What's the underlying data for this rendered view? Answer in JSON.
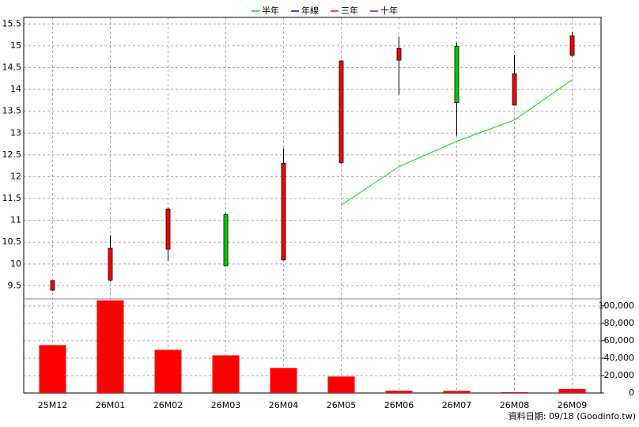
{
  "chart_data": [
    {
      "type": "candlestick",
      "categories": [
        "25M12",
        "26M01",
        "26M02",
        "26M03",
        "26M04",
        "26M05",
        "26M06",
        "26M07",
        "26M08",
        "26M09"
      ],
      "open": [
        9.4,
        9.63,
        10.34,
        11.13,
        10.09,
        12.32,
        14.67,
        14.99,
        13.64,
        14.78
      ],
      "high": [
        9.62,
        10.66,
        11.29,
        11.16,
        12.65,
        14.67,
        15.21,
        15.07,
        14.78,
        15.32
      ],
      "low": [
        9.38,
        9.6,
        10.07,
        9.95,
        10.09,
        12.3,
        13.88,
        12.94,
        13.64,
        14.75
      ],
      "close": [
        9.62,
        10.36,
        11.26,
        9.96,
        12.31,
        14.65,
        14.94,
        13.7,
        14.36,
        15.23
      ],
      "up_color": "#ff0000",
      "down_color": "#00cc00",
      "series": [
        {
          "name": "半年",
          "color": "#00dd00",
          "values": [
            null,
            null,
            null,
            null,
            null,
            11.35,
            12.23,
            12.81,
            13.3,
            14.22
          ]
        },
        {
          "name": "年線",
          "color": "#0000ff",
          "values": [
            null,
            null,
            null,
            null,
            null,
            null,
            null,
            null,
            null,
            null
          ]
        },
        {
          "name": "三年",
          "color": "#ff0000",
          "values": [
            null,
            null,
            null,
            null,
            null,
            null,
            null,
            null,
            null,
            null
          ]
        },
        {
          "name": "十年",
          "color": "#8000ff",
          "values": [
            null,
            null,
            null,
            null,
            null,
            null,
            null,
            null,
            null,
            null
          ]
        }
      ],
      "ylim": [
        9.2,
        15.65
      ],
      "yticks": [
        9.5,
        10,
        10.5,
        11,
        11.5,
        12,
        12.5,
        13,
        13.5,
        14,
        14.5,
        15,
        15.5
      ],
      "grid": true
    },
    {
      "type": "bar",
      "values": [
        55000,
        106300,
        49500,
        43200,
        28800,
        18900,
        2700,
        2500,
        900,
        4500
      ],
      "color": "#ff0000",
      "ylim": [
        0,
        108000
      ],
      "yticks": [
        {
          "value": 0,
          "label": "0"
        },
        {
          "value": 20000,
          "label": "20,000"
        },
        {
          "value": 40000,
          "label": "40,000"
        },
        {
          "value": 60000,
          "label": "60,000"
        },
        {
          "value": 80000,
          "label": "80,000"
        },
        {
          "value": 100000,
          "label": "100,000"
        }
      ],
      "grid": true,
      "source": "資料日期: 09/18  (Goodinfo.tw)"
    }
  ]
}
